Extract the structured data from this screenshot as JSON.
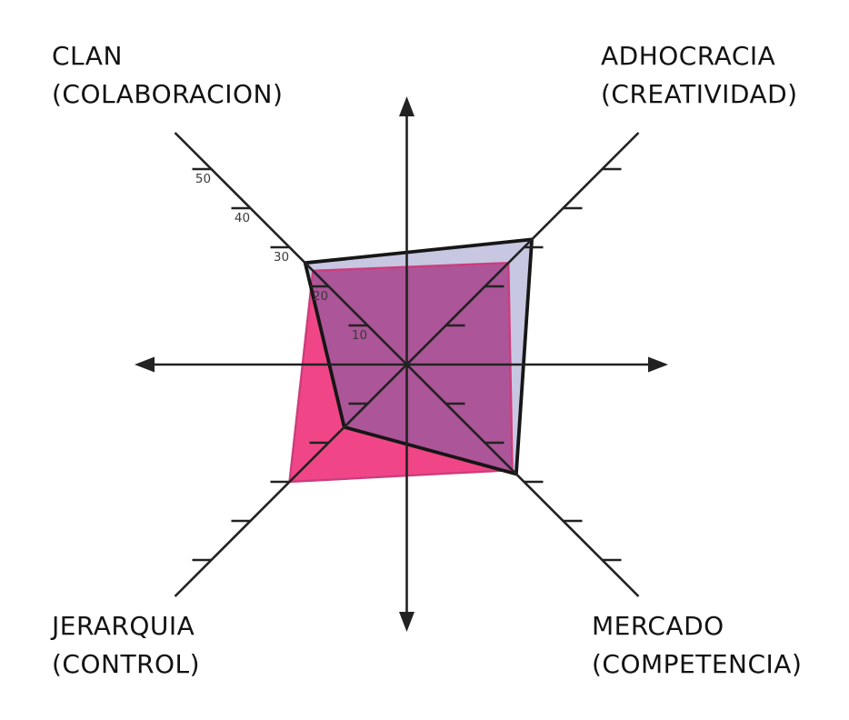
{
  "chart_data": {
    "type": "radar",
    "title": "",
    "description": "Four-quadrant OCAI-style culture radar with two overlapping quadrilateral series",
    "axes": [
      {
        "id": "clan",
        "label_line1": "CLAN",
        "label_line2": "(COLABORACION)",
        "position": "top-left"
      },
      {
        "id": "adhocracia",
        "label_line1": "ADHOCRACIA",
        "label_line2": "(CREATIVIDAD)",
        "position": "top-right"
      },
      {
        "id": "mercado",
        "label_line1": "MERCADO",
        "label_line2": "(COMPETENCIA)",
        "position": "bottom-right"
      },
      {
        "id": "jerarquia",
        "label_line1": "JERARQUIA",
        "label_line2": "(CONTROL)",
        "position": "bottom-left"
      }
    ],
    "ticks": [
      10,
      20,
      30,
      40,
      50
    ],
    "tick_labels_axis": "clan",
    "axis_range": [
      0,
      55
    ],
    "grid": false,
    "legend": false,
    "series": [
      {
        "name": "lavender-series",
        "fill": "#c7c7e2",
        "outline": "#161616",
        "values": {
          "clan": 26,
          "adhocracia": 32,
          "mercado": 28,
          "jerarquia": 16
        }
      },
      {
        "name": "pink-series",
        "fill": "#f04687",
        "outline": "#cc3d7c",
        "values": {
          "clan": 24,
          "adhocracia": 26,
          "mercado": 27,
          "jerarquia": 30
        }
      }
    ],
    "overlap_fill": "#ac5598",
    "axis_color": "#222222",
    "tick_color": "#222222",
    "tick_label_color": "#3a3a3a",
    "label_color": "#121212"
  }
}
